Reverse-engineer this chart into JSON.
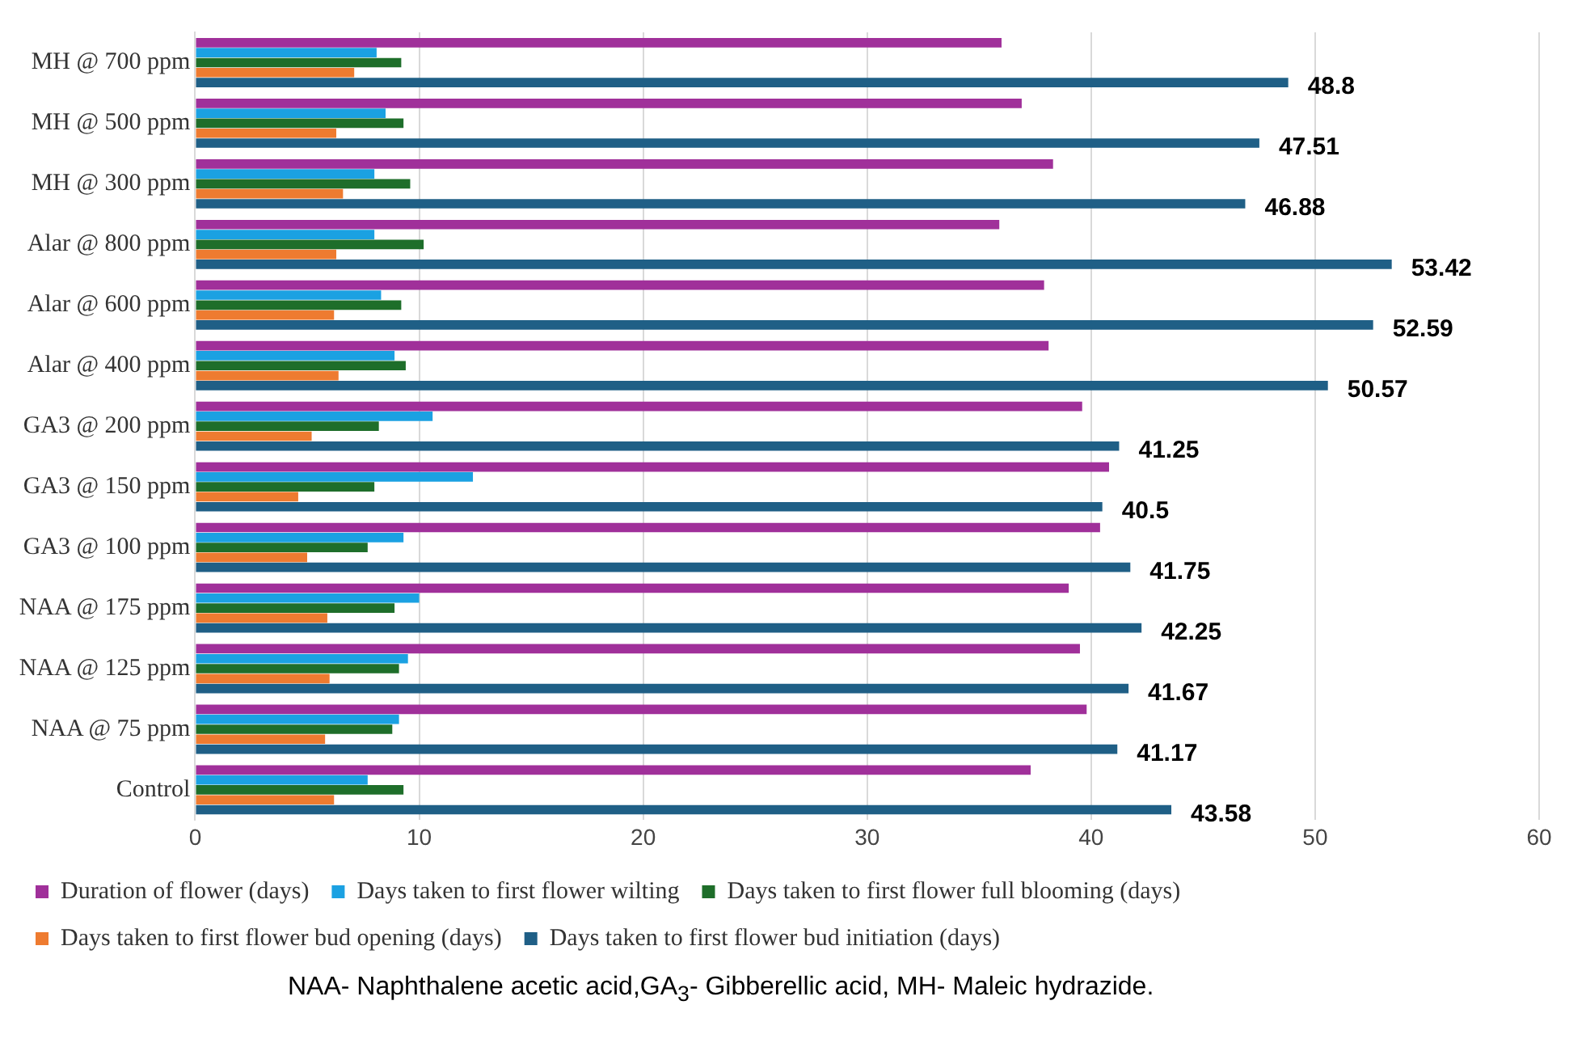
{
  "chart_data": {
    "type": "bar",
    "orientation": "horizontal",
    "categories": [
      "MH @ 700 ppm",
      "MH @ 500 ppm",
      "MH @ 300 ppm",
      "Alar @ 800 ppm",
      "Alar @ 600 ppm",
      "Alar @ 400 ppm",
      "GA3 @ 200 ppm",
      "GA3 @ 150 ppm",
      "GA3 @ 100 ppm",
      "NAA @ 175 ppm",
      "NAA @ 125 ppm",
      "NAA @ 75 ppm",
      "Control"
    ],
    "series": [
      {
        "name": "Duration of flower (days)",
        "color": "#a0309a",
        "values": [
          36.0,
          36.9,
          38.3,
          35.9,
          37.9,
          38.1,
          39.6,
          40.8,
          40.4,
          39.0,
          39.5,
          39.8,
          37.3
        ]
      },
      {
        "name": "Days taken to first flower wilting",
        "color": "#1ba1e2",
        "values": [
          8.1,
          8.5,
          8.0,
          8.0,
          8.3,
          8.9,
          10.6,
          12.4,
          9.3,
          10.0,
          9.5,
          9.1,
          7.7
        ]
      },
      {
        "name": "Days taken to first flower full blooming (days)",
        "color": "#1e6e2a",
        "values": [
          9.2,
          9.3,
          9.6,
          10.2,
          9.2,
          9.4,
          8.2,
          8.0,
          7.7,
          8.9,
          9.1,
          8.8,
          9.3
        ]
      },
      {
        "name": "Days taken to first flower bud opening (days)",
        "color": "#ee7b30",
        "values": [
          7.1,
          6.3,
          6.6,
          6.3,
          6.2,
          6.4,
          5.2,
          4.6,
          5.0,
          5.9,
          6.0,
          5.8,
          6.2
        ]
      },
      {
        "name": "Days taken to first flower bud initiation (days)",
        "color": "#1f5f86",
        "values": [
          48.8,
          47.51,
          46.88,
          53.42,
          52.59,
          50.57,
          41.25,
          40.5,
          41.75,
          42.25,
          41.67,
          41.17,
          43.58
        ],
        "value_labels": [
          "48.8",
          "47.51",
          "46.88",
          "53.42",
          "52.59",
          "50.57",
          "41.25",
          "40.5",
          "41.75",
          "42.25",
          "41.67",
          "41.17",
          "43.58"
        ]
      }
    ],
    "xlim": [
      0,
      60
    ],
    "xticks": [
      0,
      10,
      20,
      30,
      40,
      50,
      60
    ],
    "grid": "x",
    "legend": "bottom",
    "annotations": [
      "NAA- Naphthalene acetic acid,GA$_{3}$- Gibberellic acid, MH- Maleic hydrazide."
    ]
  }
}
